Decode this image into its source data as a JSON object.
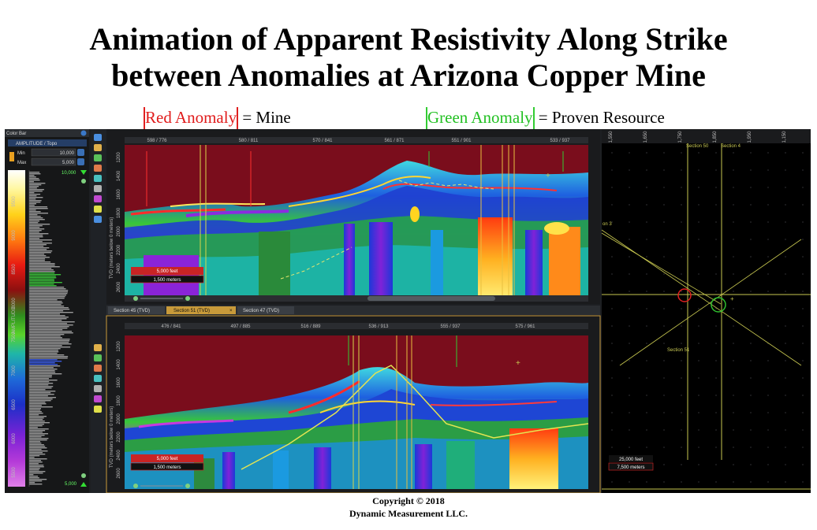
{
  "title": {
    "line1": "Animation of Apparent Resistivity Along Strike",
    "line2": "between Anomalies at Arizona Copper Mine"
  },
  "legend": {
    "red_label": "Red Anomaly",
    "red_suffix": " = Mine",
    "green_label": "Green Anomaly",
    "green_suffix": " = Proven Resource",
    "red_color": "#e01b1b",
    "green_color": "#22c022"
  },
  "color_bar": {
    "panel_title": "Color Bar",
    "attribute": "AMPLITUDE / Topo",
    "min_label": "Min",
    "min_value": "10,000",
    "max_label": "Max",
    "max_value": "5,000",
    "top_value": "10,000",
    "bottom_value": "5,000",
    "axis_label": "AMPLITUDE",
    "ticks": [
      "9500",
      "9000",
      "8500",
      "8000",
      "7500",
      "7000",
      "6500",
      "6000",
      "5500"
    ]
  },
  "section_top": {
    "x_ticks": [
      "598 / 776",
      "580 / 811",
      "570 / 841",
      "561 / 871",
      "551 / 901",
      "533 / 937"
    ],
    "y_ticks": [
      "1200",
      "1400",
      "1600",
      "1800",
      "2000",
      "2200",
      "2400",
      "2600"
    ],
    "y_axis_label": "TVD (meters below 0 meters)",
    "scale_feet": "5,000 feet",
    "scale_meters": "1,500 meters"
  },
  "tabs": [
    {
      "label": "Section 45 (TVD)",
      "active": false
    },
    {
      "label": "Section 51 (TVD)",
      "active": true
    },
    {
      "label": "Section 47 (TVD)",
      "active": false
    }
  ],
  "section_bottom": {
    "x_ticks": [
      "476 / 841",
      "497 / 885",
      "516 / 889",
      "536 / 913",
      "555 / 937",
      "575 / 961"
    ],
    "y_ticks": [
      "1200",
      "1400",
      "1600",
      "1800",
      "2000",
      "2200",
      "2400",
      "2600"
    ],
    "y_axis_label": "TVD (meters below 0 meters)",
    "scale_feet": "5,000 feet",
    "scale_meters": "1,500 meters"
  },
  "map": {
    "x_ticks": [
      "1,550",
      "1,650",
      "1,750",
      "1,850",
      "1,950",
      "1,150"
    ],
    "labels": [
      "Section 50",
      "Section 4",
      "on 3",
      "Section 51"
    ],
    "scale_feet": "25,000 feet",
    "scale_meters": "7,500 meters"
  },
  "footer": {
    "line1": "Copyright © 2018",
    "line2": "Dynamic Measurement LLC."
  }
}
